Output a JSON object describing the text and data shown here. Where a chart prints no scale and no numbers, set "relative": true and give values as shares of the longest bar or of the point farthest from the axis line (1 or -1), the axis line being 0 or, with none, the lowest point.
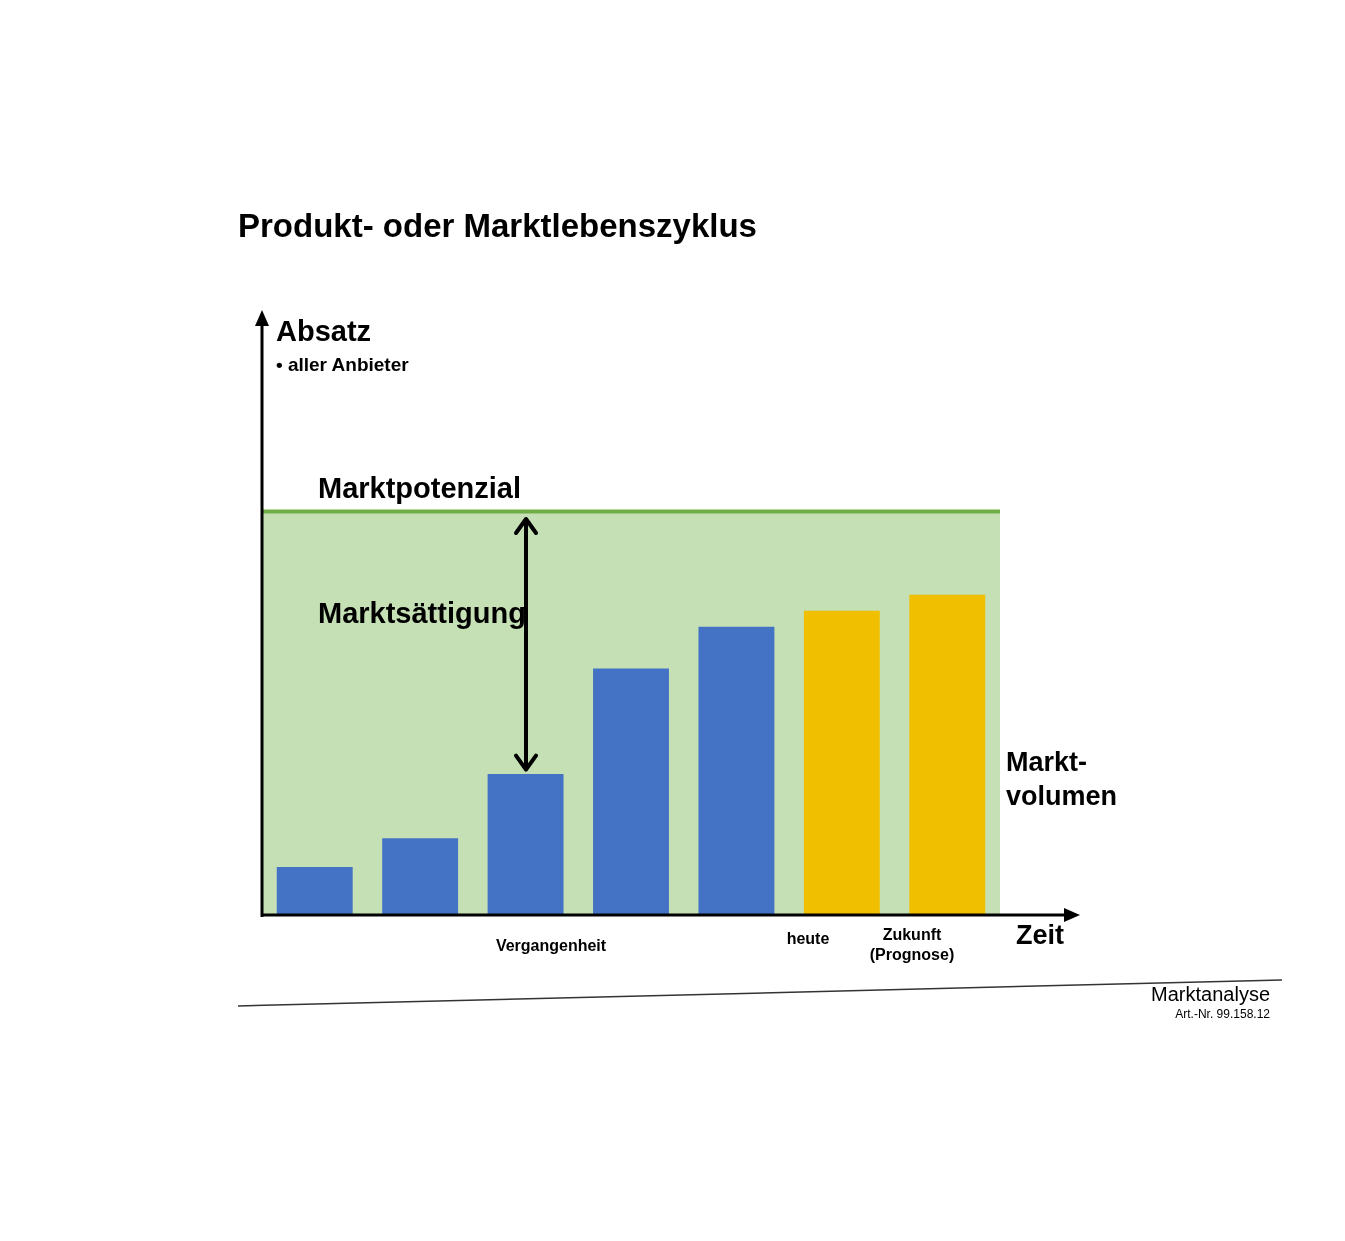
{
  "chart_data": {
    "type": "bar",
    "title": "Produkt- oder Marktlebenszyklus",
    "xlabel": "Zeit",
    "relative": true,
    "legend": false,
    "categories": [
      null,
      null,
      null,
      null,
      null,
      null,
      null
    ],
    "series": [
      {
        "colors": [
          "#4472c4",
          "#4472c4",
          "#4472c4",
          "#4472c4",
          "#4472c4",
          "#f0c000",
          "#f0c000"
        ],
        "values": [
          0.15,
          0.24,
          0.44,
          0.77,
          0.9,
          0.95,
          1.0
        ]
      }
    ],
    "ref_lines": [
      {
        "axis": "y",
        "value": 1.26,
        "label": "Marktpotenzial",
        "color": "#70ad47"
      }
    ],
    "bands": [
      {
        "axis": "y",
        "from": 0,
        "to": 1.26,
        "color": "#c5e0b4"
      }
    ],
    "annotations": [
      "Absatz",
      "• aller Anbieter",
      "Marktsättigung",
      "Markt-\nvolumen",
      "Vergangenheit",
      "heute",
      "Zukunft\n(Prognose)",
      "Marktanalyse",
      "Art.-Nr. 99.158.12"
    ]
  }
}
